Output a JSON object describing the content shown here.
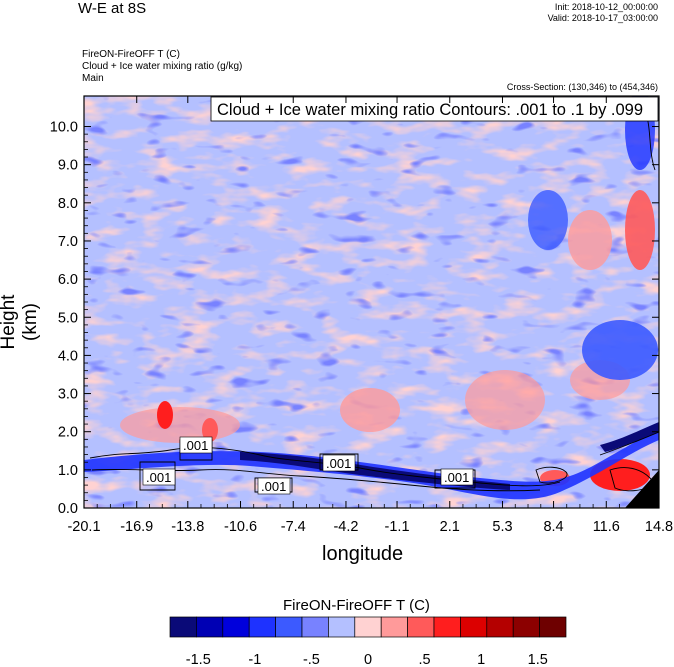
{
  "header": {
    "title": "W-E at 8S",
    "init": "Init: 2018-10-12_00:00:00",
    "valid": "Valid: 2018-10-17_03:00:00",
    "meta": [
      "FireON-FireOFF T   (C)",
      "Cloud + Ice water mixing ratio   (g/kg)",
      "Main"
    ],
    "cross_section": "Cross-Section: (130,346) to (454,346)"
  },
  "chart_data": {
    "type": "heatmap",
    "xlabel": "longitude",
    "ylabel": "Height (km)",
    "x_ticks": [
      "-20.1",
      "-16.9",
      "-13.8",
      "-10.6",
      "-7.4",
      "-4.2",
      "-1.1",
      "2.1",
      "5.3",
      "8.4",
      "11.6",
      "14.8"
    ],
    "y_ticks": [
      "0.0",
      "1.0",
      "2.0",
      "3.0",
      "4.0",
      "5.0",
      "6.0",
      "7.0",
      "8.0",
      "9.0",
      "10.0"
    ],
    "xlim": [
      -20.1,
      14.8
    ],
    "ylim": [
      0.0,
      10.8
    ],
    "contour_box": "Cloud + Ice water mixing ratio Contours: .001 to .1 by .099",
    "contour_labels": [
      ".001",
      ".001",
      ".001",
      ".001",
      ".001"
    ],
    "colorbar": {
      "title": "FireON-FireOFF T  (C)",
      "tick_labels": [
        "-1.5",
        "-1",
        "-.5",
        "0",
        ".5",
        "1",
        "1.5"
      ],
      "colors": [
        "#0a0a78",
        "#0000b4",
        "#0000dc",
        "#1e32ff",
        "#3c5aff",
        "#7882ff",
        "#b4c0ff",
        "#ffd2d2",
        "#ff9a9a",
        "#ff5a5a",
        "#ff1e1e",
        "#dc0000",
        "#b40000",
        "#8c0000",
        "#6e0000"
      ]
    }
  }
}
